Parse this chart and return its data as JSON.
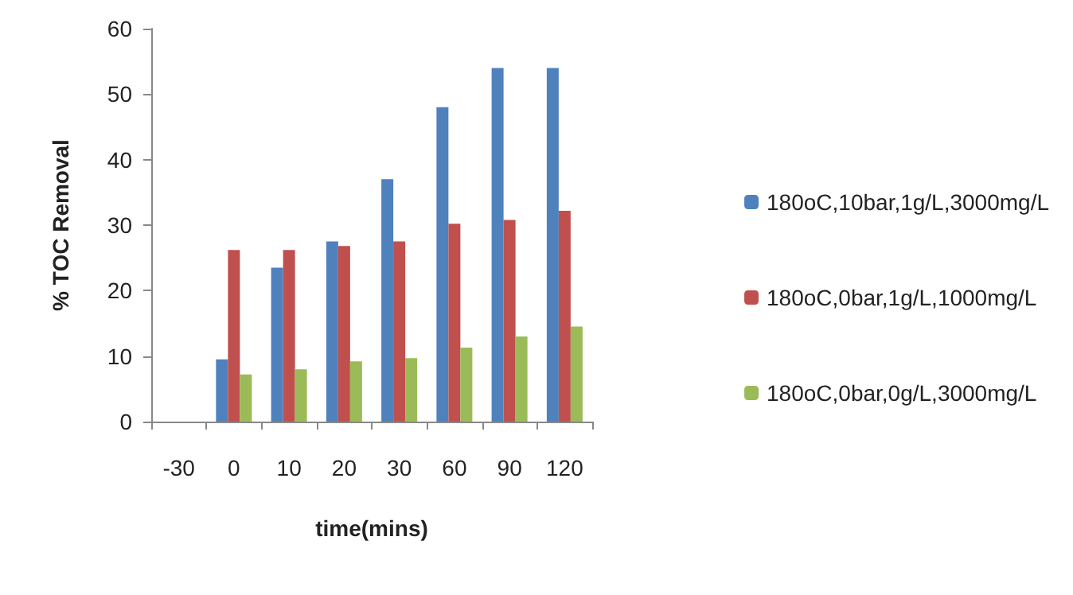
{
  "chart_data": {
    "type": "bar",
    "xlabel": "time(mins)",
    "ylabel": "% TOC Removal",
    "categories": [
      "-30",
      "0",
      "10",
      "20",
      "30",
      "60",
      "90",
      "120"
    ],
    "series": [
      {
        "name": "180oC,10bar,1g/L,3000mg/L",
        "color": "#4f81bd",
        "values": [
          null,
          9.5,
          23.5,
          27.5,
          37,
          48,
          54,
          54
        ]
      },
      {
        "name": "180oC,0bar,1g/L,1000mg/L",
        "color": "#c0504d",
        "values": [
          null,
          26.2,
          26.2,
          26.8,
          27.5,
          30.2,
          30.8,
          32.2
        ]
      },
      {
        "name": "180oC,0bar,0g/L,3000mg/L",
        "color": "#9bbb59",
        "values": [
          null,
          7.2,
          8,
          9.2,
          9.7,
          11.3,
          13,
          14.5
        ]
      }
    ],
    "ylim": [
      0,
      60
    ],
    "yticks": [
      0,
      10,
      20,
      30,
      40,
      50,
      60
    ],
    "grid": false,
    "legend": "right"
  }
}
